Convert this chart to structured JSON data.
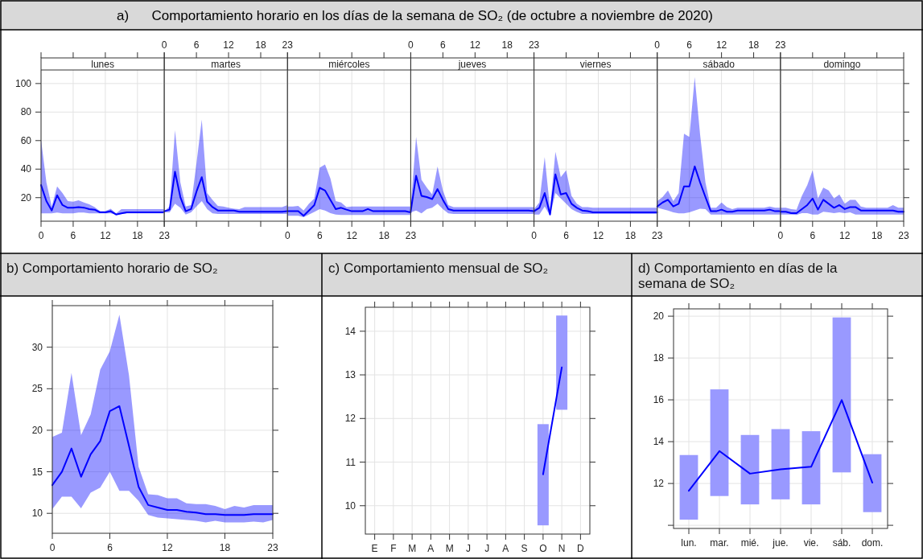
{
  "chart_data": [
    {
      "type": "other",
      "title": "a)      Comportamiento horario en los días de la semana de SO₂ (de octubre a noviembre de 2020)"
    },
    {
      "type": "line",
      "title": "lunes",
      "x": [
        0,
        1,
        2,
        3,
        4,
        5,
        6,
        7,
        8,
        9,
        10,
        11,
        12,
        13,
        14,
        15,
        16,
        17,
        18,
        19,
        20,
        21,
        22,
        23
      ],
      "xlim": [
        0,
        23
      ],
      "xticks": [
        0,
        6,
        12,
        18,
        23
      ],
      "ylim": [
        3.5,
        109.5
      ],
      "yticks": [
        20,
        40,
        60,
        80,
        100
      ],
      "grid": true,
      "series": [
        {
          "color": "#0000ff",
          "values": [
            28.8,
            17.6,
            11,
            21.7,
            14.8,
            12.9,
            12.9,
            13.4,
            13,
            12,
            11.6,
            9.7,
            9.7,
            10.5,
            8.2,
            9,
            9.7,
            9.7,
            9.7,
            9.7,
            9.7,
            9.7,
            9.7,
            9.7
          ],
          "lower": [
            9,
            9,
            9,
            9.5,
            9,
            9,
            9,
            9.5,
            9.5,
            9,
            9,
            9,
            9,
            9,
            8.2,
            8.6,
            9,
            9,
            9,
            9,
            9,
            9,
            9,
            9
          ],
          "upper": [
            60.6,
            30.7,
            13.8,
            27.9,
            23.2,
            17.6,
            17.2,
            18.1,
            16.6,
            15.3,
            13.4,
            10.5,
            10.5,
            12.3,
            9,
            12,
            12,
            12,
            12,
            12,
            12,
            12,
            12,
            12
          ]
        }
      ]
    },
    {
      "type": "line",
      "title": "martes",
      "x": [
        0,
        1,
        2,
        3,
        4,
        5,
        6,
        7,
        8,
        9,
        10,
        11,
        12,
        13,
        14,
        15,
        16,
        17,
        18,
        19,
        20,
        21,
        22,
        23
      ],
      "xlim": [
        0,
        23
      ],
      "x2lim": [
        0,
        23
      ],
      "x2ticks": [
        0,
        6,
        12,
        18,
        23
      ],
      "ylim": [
        3.5,
        109.5
      ],
      "yticks": [
        20,
        40,
        60,
        80,
        100
      ],
      "tick_labels": "x",
      "grid": true,
      "series": [
        {
          "color": "#0000ff",
          "values": [
            10.5,
            11.6,
            38.2,
            20.4,
            10.5,
            12,
            24.1,
            34.4,
            17.2,
            13.4,
            11,
            11,
            11,
            11,
            10.1,
            10.1,
            10.1,
            10.1,
            10.1,
            10.1,
            10.1,
            10.1,
            10.1,
            10.5
          ],
          "lower": [
            9.7,
            9.7,
            15.7,
            12.9,
            8.2,
            9.7,
            13.8,
            17.6,
            12,
            9,
            8.6,
            8.6,
            8.6,
            8.6,
            8.6,
            8.6,
            8.6,
            8.6,
            8.6,
            8.6,
            8.6,
            8.6,
            8.6,
            8.6
          ],
          "upper": [
            10.5,
            13.8,
            67.2,
            30.7,
            13.8,
            14.8,
            43.8,
            74.7,
            23.2,
            18.5,
            14.2,
            13.8,
            12.9,
            12.3,
            12,
            13.4,
            13.4,
            13.4,
            13.4,
            13.4,
            13.4,
            13.4,
            13.4,
            14.8
          ]
        }
      ]
    },
    {
      "type": "line",
      "title": "miércoles",
      "x": [
        0,
        1,
        2,
        3,
        4,
        5,
        6,
        7,
        8,
        9,
        10,
        11,
        12,
        13,
        14,
        15,
        16,
        17,
        18,
        19,
        20,
        21,
        22,
        23
      ],
      "xlim": [
        0,
        23
      ],
      "xticks": [
        0,
        6,
        12,
        18,
        23
      ],
      "ylim": [
        3.5,
        109.5
      ],
      "yticks": [
        20,
        40,
        60,
        80,
        100
      ],
      "tick_labels": "x",
      "grid": true,
      "series": [
        {
          "color": "#0000ff",
          "values": [
            10.5,
            10.5,
            10.5,
            7.3,
            11,
            14.8,
            26.9,
            25,
            18.5,
            12,
            12.9,
            11.6,
            10.5,
            10.5,
            10.5,
            12,
            10.5,
            10.5,
            10.5,
            10.5,
            10.5,
            10.5,
            10.5,
            9.7
          ],
          "lower": [
            7.3,
            7.3,
            7.3,
            6.3,
            8.2,
            10,
            12,
            11,
            9.1,
            8.2,
            7.8,
            7.8,
            7.8,
            7.8,
            7.8,
            7.8,
            7.8,
            7.8,
            7.8,
            7.8,
            7.8,
            7.8,
            7.8,
            7.8
          ],
          "upper": [
            13.8,
            13.8,
            14.2,
            11,
            15.7,
            19.4,
            41,
            43.2,
            33.5,
            17.6,
            16.6,
            13.4,
            13.8,
            13.8,
            13.8,
            13.8,
            13.8,
            13.8,
            13.8,
            13.8,
            13.8,
            13.8,
            13.8,
            13.8
          ]
        }
      ]
    },
    {
      "type": "line",
      "title": "jueves",
      "x": [
        0,
        1,
        2,
        3,
        4,
        5,
        6,
        7,
        8,
        9,
        10,
        11,
        12,
        13,
        14,
        15,
        16,
        17,
        18,
        19,
        20,
        21,
        22,
        23
      ],
      "xlim": [
        0,
        23
      ],
      "x2lim": [
        0,
        23
      ],
      "x2ticks": [
        0,
        6,
        12,
        18,
        23
      ],
      "ylim": [
        3.5,
        109.5
      ],
      "yticks": [
        20,
        40,
        60,
        80,
        100
      ],
      "tick_labels": "x",
      "grid": true,
      "series": [
        {
          "color": "#0000ff",
          "values": [
            10.5,
            35.4,
            21.3,
            20.4,
            19,
            26,
            18.5,
            12,
            11,
            11,
            11,
            11,
            11,
            11,
            11,
            11,
            11,
            11,
            11,
            11,
            11,
            11,
            11,
            10.5
          ],
          "lower": [
            9.7,
            11,
            9,
            12,
            12.9,
            15.7,
            12,
            9,
            8.6,
            8.6,
            8.6,
            8.6,
            8.6,
            8.6,
            8.6,
            8.6,
            8.6,
            8.6,
            8.6,
            8.6,
            8.6,
            8.6,
            8.6,
            8.6
          ],
          "upper": [
            13.8,
            62.5,
            32.5,
            27,
            22.2,
            41.9,
            25,
            14.8,
            13.4,
            13.4,
            13.4,
            13.4,
            13.4,
            13.4,
            13.4,
            13.4,
            13.4,
            13.4,
            13.4,
            13.4,
            13.4,
            13.4,
            13.4,
            13.4
          ]
        }
      ]
    },
    {
      "type": "line",
      "title": "viernes",
      "x": [
        0,
        1,
        2,
        3,
        4,
        5,
        6,
        7,
        8,
        9,
        10,
        11,
        12,
        13,
        14,
        15,
        16,
        17,
        18,
        19,
        20,
        21,
        22,
        23
      ],
      "xlim": [
        0,
        23
      ],
      "xticks": [
        0,
        6,
        12,
        18,
        23
      ],
      "ylim": [
        3.5,
        109.5
      ],
      "yticks": [
        20,
        40,
        60,
        80,
        100
      ],
      "tick_labels": "x",
      "grid": true,
      "series": [
        {
          "color": "#0000ff",
          "values": [
            10.5,
            12.9,
            23.2,
            8.2,
            36.3,
            22.2,
            23.2,
            15.7,
            12.9,
            11,
            10.5,
            9.7,
            9.7,
            9.7,
            9.7,
            9.7,
            9.7,
            9.7,
            9.7,
            9.7,
            9.7,
            9.7,
            9.7,
            9.7
          ],
          "lower": [
            8.2,
            8.2,
            13.8,
            7.3,
            23.2,
            19.4,
            15.7,
            12,
            10,
            8.6,
            8.6,
            8.6,
            8.6,
            8.6,
            8.6,
            8.6,
            8.6,
            8.6,
            8.6,
            8.6,
            8.6,
            8.6,
            8.6,
            8.6
          ],
          "upper": [
            12,
            16.6,
            48.5,
            12,
            52.2,
            34.4,
            39.1,
            21.3,
            15.7,
            13.4,
            13.4,
            12.9,
            12.9,
            12.9,
            12.9,
            12.9,
            12.9,
            12.9,
            12.9,
            12.9,
            12.9,
            12.9,
            12.9,
            12.9
          ]
        }
      ]
    },
    {
      "type": "line",
      "title": "sábado",
      "x": [
        0,
        1,
        2,
        3,
        4,
        5,
        6,
        7,
        8,
        9,
        10,
        11,
        12,
        13,
        14,
        15,
        16,
        17,
        18,
        19,
        20,
        21,
        22,
        23
      ],
      "xlim": [
        0,
        23
      ],
      "x2lim": [
        0,
        23
      ],
      "x2ticks": [
        0,
        6,
        12,
        18,
        23
      ],
      "ylim": [
        3.5,
        109.5
      ],
      "yticks": [
        20,
        40,
        60,
        80,
        100
      ],
      "tick_labels": "x",
      "grid": true,
      "series": [
        {
          "color": "#0000ff",
          "values": [
            13.8,
            16.6,
            18.5,
            13.8,
            15.7,
            27.9,
            27.9,
            41.9,
            30.7,
            20.4,
            10.5,
            10.5,
            11.6,
            10.1,
            10.1,
            11,
            11,
            11,
            11,
            11,
            11,
            11.6,
            10.5,
            10.5
          ],
          "lower": [
            12.9,
            12,
            11,
            9.7,
            9,
            9,
            9.7,
            11,
            12.3,
            12,
            8.2,
            8.2,
            8.2,
            8.2,
            8.2,
            8.2,
            8.2,
            8.2,
            8.2,
            8.2,
            8.2,
            8.2,
            8.2,
            8.2
          ],
          "upper": [
            17.6,
            20.4,
            25,
            17.6,
            23.2,
            64.8,
            62.5,
            104.6,
            64.4,
            30.7,
            12.9,
            12.9,
            16.6,
            13.4,
            12,
            12.9,
            12.9,
            12.9,
            12.9,
            12.9,
            12.9,
            13.8,
            12.9,
            12.9
          ]
        }
      ]
    },
    {
      "type": "line",
      "title": "domingo",
      "x": [
        0,
        1,
        2,
        3,
        4,
        5,
        6,
        7,
        8,
        9,
        10,
        11,
        12,
        13,
        14,
        15,
        16,
        17,
        18,
        19,
        20,
        21,
        22,
        23
      ],
      "xlim": [
        0,
        23
      ],
      "xticks": [
        0,
        6,
        12,
        18,
        23
      ],
      "ylim": [
        3.5,
        109.5
      ],
      "yticks": [
        20,
        40,
        60,
        80,
        100
      ],
      "tick_labels": "x",
      "grid": true,
      "series": [
        {
          "color": "#0000ff",
          "values": [
            10.1,
            10.1,
            9.1,
            9.1,
            12,
            14.8,
            19.4,
            11.6,
            18.5,
            15.7,
            12.9,
            14.8,
            12,
            13.4,
            13.4,
            11,
            11,
            11,
            11,
            11,
            11,
            11,
            10.1,
            10.1
          ],
          "lower": [
            8.2,
            8.2,
            8.2,
            7.8,
            9.1,
            9.1,
            8.2,
            8.2,
            10.1,
            9.7,
            9.1,
            9.7,
            9.1,
            9.7,
            8.2,
            8.2,
            8.2,
            8.2,
            8.2,
            8.2,
            8.2,
            8.2,
            8.2,
            8.2
          ],
          "upper": [
            12.9,
            12.9,
            12,
            11.6,
            21.3,
            28.8,
            39.1,
            19.4,
            27,
            25,
            19.4,
            22.2,
            15.7,
            18.5,
            18.5,
            13.8,
            12.9,
            12.9,
            12.9,
            12.9,
            12.9,
            14.8,
            12.9,
            12.9
          ]
        }
      ]
    },
    {
      "type": "line",
      "title": "b) Comportamiento horario de SO₂",
      "x": [
        0,
        1,
        2,
        3,
        4,
        5,
        6,
        7,
        8,
        9,
        10,
        11,
        12,
        13,
        14,
        15,
        16,
        17,
        18,
        19,
        20,
        21,
        22,
        23
      ],
      "xlim": [
        0,
        23
      ],
      "xticks": [
        0,
        6,
        12,
        18,
        23
      ],
      "ylim": [
        7.6,
        35
      ],
      "yticks": [
        10,
        15,
        20,
        25,
        30
      ],
      "grid": true,
      "series": [
        {
          "color": "#0000ff",
          "values": [
            13.4,
            15,
            17.8,
            14.4,
            17.1,
            18.7,
            22.3,
            22.9,
            18.1,
            13.2,
            11,
            10.7,
            10.4,
            10.4,
            10.2,
            10.1,
            9.9,
            9.9,
            9.8,
            9.8,
            9.8,
            9.9,
            9.9,
            9.9
          ],
          "lower": [
            10.5,
            12,
            12,
            10.6,
            12.5,
            13.1,
            15,
            12.7,
            12.7,
            11.5,
            9.8,
            9.5,
            9.4,
            9.3,
            9.2,
            9.1,
            8.9,
            9.1,
            8.9,
            8.9,
            8.9,
            9,
            8.9,
            9.2
          ],
          "upper": [
            19.2,
            19.7,
            26.9,
            19.4,
            21.9,
            27.3,
            29.5,
            33.9,
            26.6,
            15.6,
            12.3,
            12.2,
            11.8,
            11.8,
            11.2,
            11.1,
            11.1,
            10.9,
            10.5,
            10.9,
            10.7,
            11,
            11,
            11
          ]
        }
      ]
    },
    {
      "type": "line",
      "title": "c) Comportamiento mensual de SO₂",
      "categories": [
        "E",
        "F",
        "M",
        "A",
        "M",
        "J",
        "J",
        "A",
        "S",
        "O",
        "N",
        "D"
      ],
      "ylim": [
        9.35,
        14.55
      ],
      "yticks": [
        10,
        11,
        12,
        13,
        14
      ],
      "grid": true,
      "series": [
        {
          "type": "bar",
          "color": "#9999ff",
          "base": [
            null,
            null,
            null,
            null,
            null,
            null,
            null,
            null,
            null,
            9.55,
            12.2,
            null
          ],
          "values": [
            null,
            null,
            null,
            null,
            null,
            null,
            null,
            null,
            null,
            2.32,
            2.16,
            null
          ]
        },
        {
          "type": "line",
          "color": "#0000ff",
          "values": [
            null,
            null,
            null,
            null,
            null,
            null,
            null,
            null,
            null,
            10.72,
            13.17,
            null
          ]
        }
      ]
    },
    {
      "type": "line",
      "title": "d) Comportamiento en días de la semana de SO₂",
      "categories": [
        "lun.",
        "mar.",
        "mié.",
        "jue.",
        "vie.",
        "sáb.",
        "dom."
      ],
      "ylim": [
        9.85,
        20.35
      ],
      "yticks": [
        {
          "value": 10,
          "label": null
        },
        12,
        14,
        16,
        18,
        20
      ],
      "grid": true,
      "series": [
        {
          "type": "bar",
          "color": "#9999ff",
          "base": [
            10.27,
            11.4,
            11,
            11.24,
            11,
            12.53,
            10.63
          ],
          "values": [
            3.09,
            5.1,
            3.32,
            3.36,
            3.5,
            7.41,
            2.77
          ]
        },
        {
          "type": "line",
          "color": "#0000ff",
          "values": [
            11.65,
            13.55,
            12.47,
            12.68,
            12.8,
            15.99,
            12.04
          ]
        }
      ]
    }
  ]
}
